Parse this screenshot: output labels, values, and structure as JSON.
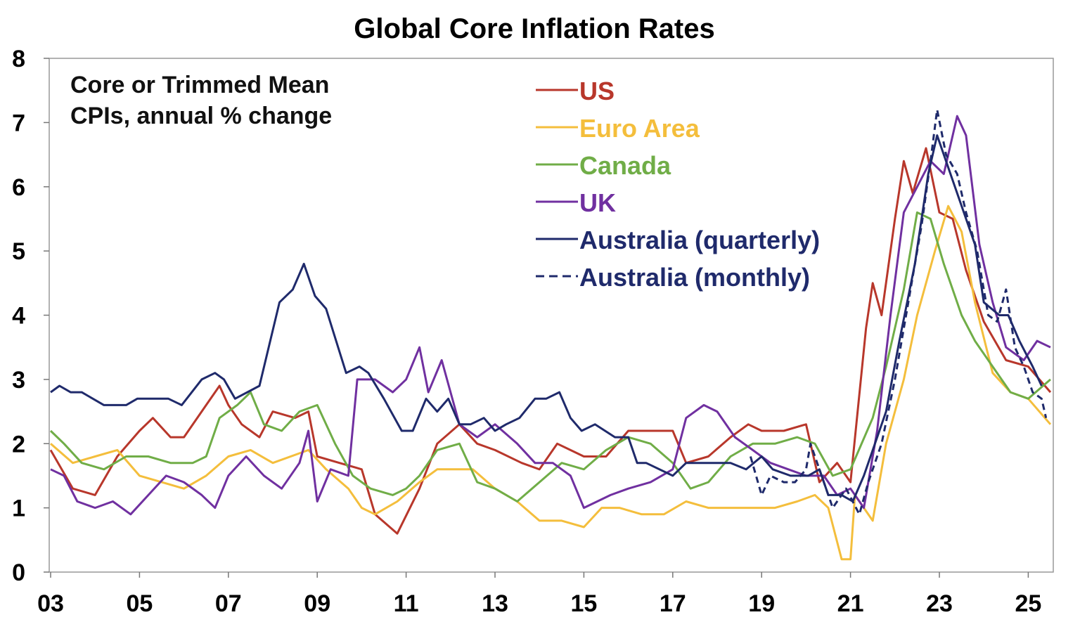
{
  "chart_data": {
    "type": "line",
    "title": "Global Core Inflation Rates",
    "annotation": [
      "Core or Trimmed Mean",
      "CPIs, annual % change"
    ],
    "xlabel": "",
    "ylabel": "",
    "ylim": [
      0,
      8
    ],
    "xlim": [
      2003,
      2025.55
    ],
    "yticks": [
      "0",
      "1",
      "2",
      "3",
      "4",
      "5",
      "6",
      "7",
      "8"
    ],
    "xticks": [
      {
        "year": 2003,
        "label": "03"
      },
      {
        "year": 2005,
        "label": "05"
      },
      {
        "year": 2007,
        "label": "07"
      },
      {
        "year": 2009,
        "label": "09"
      },
      {
        "year": 2011,
        "label": "11"
      },
      {
        "year": 2013,
        "label": "13"
      },
      {
        "year": 2015,
        "label": "15"
      },
      {
        "year": 2017,
        "label": "17"
      },
      {
        "year": 2019,
        "label": "19"
      },
      {
        "year": 2021,
        "label": "21"
      },
      {
        "year": 2023,
        "label": "23"
      },
      {
        "year": 2025,
        "label": "25"
      }
    ],
    "grid": false,
    "legend_placement": "top-center",
    "series": [
      {
        "name": "US",
        "color": "#B8372B",
        "dash": false,
        "x": [
          2003,
          2003.5,
          2004,
          2004.5,
          2005,
          2005.3,
          2005.7,
          2006,
          2006.5,
          2006.8,
          2007,
          2007.3,
          2007.7,
          2008,
          2008.5,
          2008.8,
          2009,
          2009.5,
          2010,
          2010.3,
          2010.8,
          2011.3,
          2011.7,
          2012.2,
          2012.6,
          2013,
          2013.6,
          2014,
          2014.4,
          2015,
          2015.5,
          2016,
          2016.5,
          2017,
          2017.3,
          2017.8,
          2018.3,
          2018.7,
          2019,
          2019.5,
          2020,
          2020.3,
          2020.7,
          2021,
          2021.35,
          2021.5,
          2021.7,
          2022,
          2022.2,
          2022.4,
          2022.7,
          2023,
          2023.3,
          2023.6,
          2024,
          2024.5,
          2025,
          2025.5
        ],
        "y": [
          1.9,
          1.3,
          1.2,
          1.8,
          2.2,
          2.4,
          2.1,
          2.1,
          2.6,
          2.9,
          2.6,
          2.3,
          2.1,
          2.5,
          2.4,
          2.5,
          1.8,
          1.7,
          1.6,
          0.9,
          0.6,
          1.3,
          2.0,
          2.3,
          2.0,
          1.9,
          1.7,
          1.6,
          2.0,
          1.8,
          1.8,
          2.2,
          2.2,
          2.2,
          1.7,
          1.8,
          2.1,
          2.3,
          2.2,
          2.2,
          2.3,
          1.4,
          1.7,
          1.4,
          3.8,
          4.5,
          4.0,
          5.5,
          6.4,
          5.9,
          6.6,
          5.6,
          5.5,
          4.7,
          3.9,
          3.3,
          3.2,
          2.8
        ]
      },
      {
        "name": "Euro Area",
        "color": "#F4BE3C",
        "dash": false,
        "x": [
          2003,
          2003.5,
          2004,
          2004.5,
          2005,
          2005.5,
          2006,
          2006.5,
          2007,
          2007.5,
          2008,
          2008.8,
          2009.2,
          2009.7,
          2010,
          2010.3,
          2010.8,
          2011.3,
          2011.7,
          2012,
          2012.5,
          2013,
          2013.5,
          2014,
          2014.5,
          2015,
          2015.4,
          2015.8,
          2016.3,
          2016.8,
          2017.3,
          2017.8,
          2018.3,
          2018.8,
          2019.3,
          2019.8,
          2020.2,
          2020.5,
          2020.8,
          2021.0,
          2021.1,
          2021.5,
          2021.8,
          2022.2,
          2022.5,
          2022.9,
          2023.2,
          2023.5,
          2023.8,
          2024.2,
          2024.6,
          2025,
          2025.5
        ],
        "y": [
          2.0,
          1.7,
          1.8,
          1.9,
          1.5,
          1.4,
          1.3,
          1.5,
          1.8,
          1.9,
          1.7,
          1.9,
          1.6,
          1.3,
          1.0,
          0.9,
          1.1,
          1.4,
          1.6,
          1.6,
          1.6,
          1.3,
          1.1,
          0.8,
          0.8,
          0.7,
          1.0,
          1.0,
          0.9,
          0.9,
          1.1,
          1.0,
          1.0,
          1.0,
          1.0,
          1.1,
          1.2,
          1.0,
          0.2,
          0.2,
          1.2,
          0.8,
          2.0,
          3.0,
          4.0,
          5.0,
          5.7,
          5.3,
          4.2,
          3.1,
          2.8,
          2.7,
          2.3
        ]
      },
      {
        "name": "Canada",
        "color": "#70AD47",
        "dash": false,
        "x": [
          2003,
          2003.3,
          2003.7,
          2004.2,
          2004.7,
          2005.2,
          2005.7,
          2006.2,
          2006.5,
          2006.8,
          2007.2,
          2007.5,
          2007.8,
          2008.2,
          2008.6,
          2009,
          2009.4,
          2009.8,
          2010.2,
          2010.7,
          2011,
          2011.3,
          2011.7,
          2012.2,
          2012.6,
          2013,
          2013.5,
          2014,
          2014.5,
          2015,
          2015.5,
          2016,
          2016.5,
          2017,
          2017.4,
          2017.8,
          2018.3,
          2018.8,
          2019.3,
          2019.8,
          2020.2,
          2020.6,
          2021,
          2021.5,
          2021.8,
          2022.2,
          2022.5,
          2022.8,
          2023.1,
          2023.5,
          2023.8,
          2024.2,
          2024.6,
          2025,
          2025.5
        ],
        "y": [
          2.2,
          2.0,
          1.7,
          1.6,
          1.8,
          1.8,
          1.7,
          1.7,
          1.8,
          2.4,
          2.6,
          2.8,
          2.3,
          2.2,
          2.5,
          2.6,
          2.0,
          1.5,
          1.3,
          1.2,
          1.3,
          1.5,
          1.9,
          2.0,
          1.4,
          1.3,
          1.1,
          1.4,
          1.7,
          1.6,
          1.9,
          2.1,
          2.0,
          1.7,
          1.3,
          1.4,
          1.8,
          2.0,
          2.0,
          2.1,
          2.0,
          1.5,
          1.6,
          2.4,
          3.2,
          4.4,
          5.6,
          5.5,
          4.8,
          4.0,
          3.6,
          3.2,
          2.8,
          2.7,
          3.0
        ]
      },
      {
        "name": "UK",
        "color": "#7030A0",
        "dash": false,
        "x": [
          2003,
          2003.3,
          2003.6,
          2004,
          2004.4,
          2004.8,
          2005.2,
          2005.6,
          2006,
          2006.4,
          2006.7,
          2007,
          2007.4,
          2007.8,
          2008.2,
          2008.6,
          2008.8,
          2009,
          2009.3,
          2009.7,
          2009.9,
          2010.3,
          2010.7,
          2011,
          2011.3,
          2011.5,
          2011.8,
          2012.2,
          2012.6,
          2013,
          2013.5,
          2013.9,
          2014.3,
          2014.7,
          2015,
          2015.3,
          2015.6,
          2016,
          2016.5,
          2017,
          2017.3,
          2017.7,
          2018,
          2018.4,
          2018.8,
          2019.2,
          2019.6,
          2020,
          2020.4,
          2020.7,
          2021,
          2021.3,
          2021.6,
          2021.9,
          2022.2,
          2022.5,
          2022.8,
          2023.1,
          2023.4,
          2023.6,
          2023.9,
          2024.2,
          2024.5,
          2024.9,
          2025.2,
          2025.5
        ],
        "y": [
          1.6,
          1.5,
          1.1,
          1.0,
          1.1,
          0.9,
          1.2,
          1.5,
          1.4,
          1.2,
          1.0,
          1.5,
          1.8,
          1.5,
          1.3,
          1.7,
          2.2,
          1.1,
          1.6,
          1.5,
          3.0,
          3.0,
          2.8,
          3.0,
          3.5,
          2.8,
          3.3,
          2.3,
          2.1,
          2.3,
          2.0,
          1.7,
          1.7,
          1.5,
          1.0,
          1.1,
          1.2,
          1.3,
          1.4,
          1.6,
          2.4,
          2.6,
          2.5,
          2.1,
          1.9,
          1.7,
          1.6,
          1.5,
          1.5,
          1.2,
          1.3,
          1.0,
          2.2,
          4.0,
          5.6,
          6.0,
          6.4,
          6.2,
          7.1,
          6.8,
          5.1,
          4.2,
          3.5,
          3.3,
          3.6,
          3.5
        ]
      },
      {
        "name": "Australia (quarterly)",
        "color": "#1F2A6B",
        "dash": false,
        "x": [
          2003.0,
          2003.2,
          2003.45,
          2003.7,
          2004.2,
          2004.7,
          2004.95,
          2005.65,
          2005.95,
          2006.4,
          2006.7,
          2006.9,
          2007.15,
          2007.7,
          2008.15,
          2008.45,
          2008.7,
          2008.95,
          2009.2,
          2009.65,
          2009.95,
          2010.15,
          2010.5,
          2010.9,
          2011.15,
          2011.45,
          2011.7,
          2011.95,
          2012.2,
          2012.45,
          2012.75,
          2013.0,
          2013.25,
          2013.55,
          2013.9,
          2014.15,
          2014.45,
          2014.7,
          2014.95,
          2015.25,
          2015.7,
          2016.0,
          2016.2,
          2016.4,
          2017.0,
          2017.3,
          2017.85,
          2018.3,
          2018.65,
          2019.0,
          2019.25,
          2019.65,
          2020.05,
          2020.3,
          2020.5,
          2020.8,
          2021.05,
          2021.3,
          2021.8,
          2022.1,
          2022.45,
          2022.75,
          2022.95,
          2023.2,
          2023.55,
          2023.8,
          2024.0,
          2024.35,
          2024.55,
          2024.8,
          2025.1,
          2025.3
        ],
        "y": [
          2.8,
          2.9,
          2.8,
          2.8,
          2.6,
          2.6,
          2.7,
          2.7,
          2.6,
          3.0,
          3.1,
          3.0,
          2.7,
          2.9,
          4.2,
          4.4,
          4.8,
          4.3,
          4.1,
          3.1,
          3.2,
          3.1,
          2.7,
          2.2,
          2.2,
          2.7,
          2.5,
          2.7,
          2.3,
          2.3,
          2.4,
          2.2,
          2.3,
          2.4,
          2.7,
          2.7,
          2.8,
          2.4,
          2.2,
          2.3,
          2.1,
          2.1,
          1.7,
          1.7,
          1.5,
          1.7,
          1.7,
          1.7,
          1.6,
          1.8,
          1.6,
          1.5,
          1.5,
          1.6,
          1.2,
          1.2,
          1.1,
          1.5,
          2.5,
          3.6,
          4.8,
          6.2,
          6.8,
          6.3,
          5.6,
          5.1,
          4.2,
          4.0,
          4.0,
          3.6,
          3.2,
          2.9
        ]
      },
      {
        "name": "Australia (monthly)",
        "color": "#1F2A6B",
        "dash": true,
        "x": [
          2018.75,
          2019.0,
          2019.2,
          2019.5,
          2019.75,
          2020.0,
          2020.1,
          2020.3,
          2020.6,
          2020.9,
          2021.2,
          2021.4,
          2021.7,
          2022.0,
          2022.3,
          2022.6,
          2022.8,
          2022.95,
          2023.15,
          2023.4,
          2023.6,
          2023.85,
          2024.1,
          2024.3,
          2024.5,
          2024.7,
          2024.9,
          2025.1,
          2025.3,
          2025.4
        ],
        "y": [
          1.8,
          1.2,
          1.5,
          1.4,
          1.4,
          1.6,
          2.0,
          1.6,
          1.0,
          1.3,
          0.9,
          1.4,
          2.0,
          3.0,
          4.2,
          5.4,
          6.4,
          7.2,
          6.5,
          6.2,
          5.6,
          5.0,
          4.0,
          3.9,
          4.4,
          3.5,
          3.2,
          2.8,
          2.7,
          2.4
        ]
      }
    ]
  }
}
